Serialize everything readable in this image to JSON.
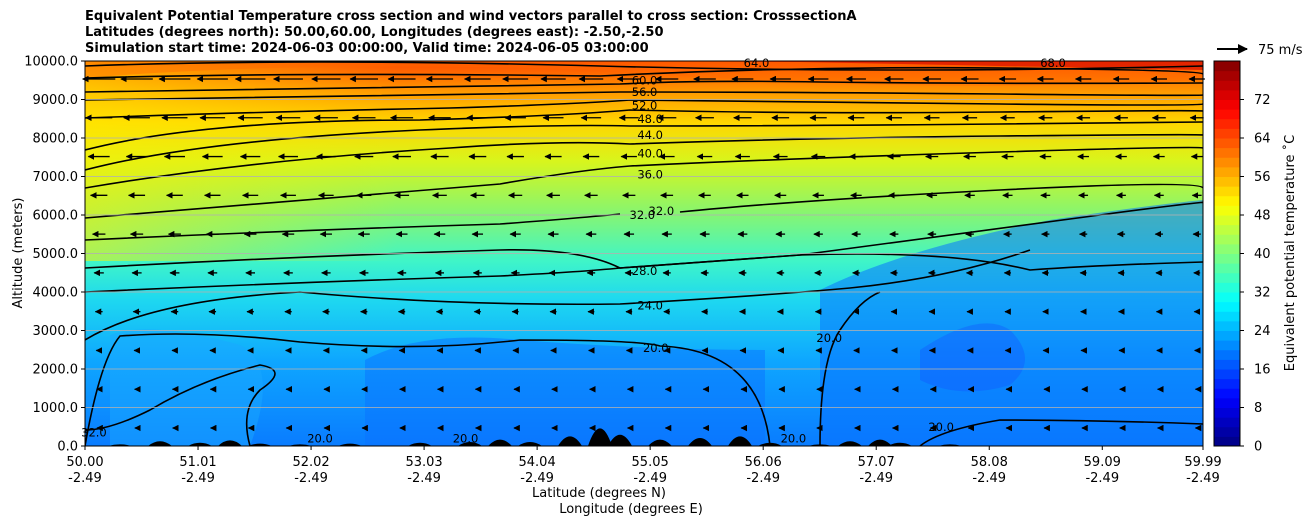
{
  "chart_data": {
    "type": "heatmap",
    "title": [
      "Equivalent Potential Temperature cross section and wind vectors parallel to cross section: CrosssectionA",
      "Latitudes (degrees north): 50.00,60.00, Longitudes (degrees east): -2.50,-2.50",
      "Simulation start time: 2024-06-03 00:00:00, Valid time: 2024-06-05 03:00:00"
    ],
    "ylabel": "Altitude (meters)",
    "xlabel_lat": "Latitude (degrees N)",
    "xlabel_lon": "Longitude (degrees E)",
    "ylim": [
      0,
      10000
    ],
    "y_ticks": [
      "0.0",
      "1000.0",
      "2000.0",
      "3000.0",
      "4000.0",
      "5000.0",
      "6000.0",
      "7000.0",
      "8000.0",
      "9000.0",
      "10000.0"
    ],
    "y_tick_values": [
      0,
      1000,
      2000,
      3000,
      4000,
      5000,
      6000,
      7000,
      8000,
      9000,
      10000
    ],
    "x_ticks_lat": [
      "50.00",
      "51.01",
      "52.02",
      "53.03",
      "54.04",
      "55.05",
      "56.06",
      "57.07",
      "58.08",
      "59.09",
      "59.99"
    ],
    "x_ticks_lon": [
      "-2.49",
      "-2.49",
      "-2.49",
      "-2.49",
      "-2.49",
      "-2.49",
      "-2.49",
      "-2.49",
      "-2.49",
      "-2.49",
      "-2.49"
    ],
    "x_tick_values": [
      50.0,
      51.01,
      52.02,
      53.03,
      54.04,
      55.05,
      56.06,
      57.07,
      58.08,
      59.09,
      59.99
    ],
    "xlim": [
      50.0,
      59.99
    ],
    "colorbar": {
      "label": "Equivalent potential temperature $^\\circ$C",
      "label_display": "Equivalent potential temperature ˚C",
      "range": [
        0,
        80
      ],
      "ticks": [
        "0",
        "8",
        "16",
        "24",
        "32",
        "40",
        "48",
        "56",
        "64",
        "72"
      ],
      "tick_values": [
        0,
        8,
        16,
        24,
        32,
        40,
        48,
        56,
        64,
        72
      ],
      "colormap": "jet"
    },
    "quiver_key": {
      "label": "75 m/s",
      "value": 75
    },
    "contour_labels": [
      {
        "text": "60.0",
        "lat": 55.0,
        "alt": 9500
      },
      {
        "text": "56.0",
        "lat": 55.0,
        "alt": 9200
      },
      {
        "text": "52.0",
        "lat": 55.0,
        "alt": 8850
      },
      {
        "text": "48.0",
        "lat": 55.05,
        "alt": 8500
      },
      {
        "text": "44.0",
        "lat": 55.05,
        "alt": 8080
      },
      {
        "text": "40.0",
        "lat": 55.05,
        "alt": 7600
      },
      {
        "text": "36.0",
        "lat": 55.05,
        "alt": 7050
      },
      {
        "text": "32.0",
        "lat": 54.98,
        "alt": 6000
      },
      {
        "text": "32.0",
        "lat": 55.15,
        "alt": 6100
      },
      {
        "text": "28.0",
        "lat": 55.0,
        "alt": 4550
      },
      {
        "text": "24.0",
        "lat": 55.05,
        "alt": 3650
      },
      {
        "text": "20.0",
        "lat": 55.1,
        "alt": 2550
      },
      {
        "text": "64.0",
        "lat": 56.0,
        "alt": 9950
      },
      {
        "text": "68.0",
        "lat": 58.65,
        "alt": 9950
      },
      {
        "text": "20.0",
        "lat": 56.33,
        "alt": 200
      },
      {
        "text": "20.0",
        "lat": 56.65,
        "alt": 2800
      },
      {
        "text": "20.0",
        "lat": 57.65,
        "alt": 500
      },
      {
        "text": "32.0",
        "lat": 50.08,
        "alt": 350
      },
      {
        "text": "20.0",
        "lat": 52.1,
        "alt": 200
      },
      {
        "text": "20.0",
        "lat": 53.4,
        "alt": 200
      }
    ]
  }
}
